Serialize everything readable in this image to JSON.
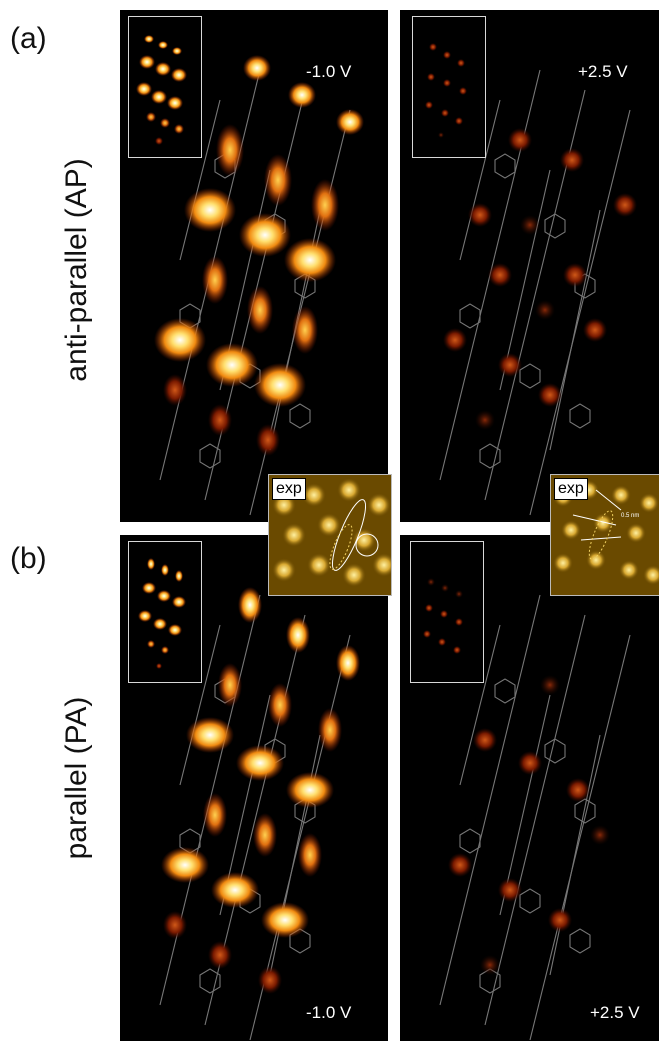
{
  "labels": {
    "a": "(a)",
    "b": "(b)"
  },
  "rows": {
    "ap": "anti-parallel (AP)",
    "pa": "parallel (PA)"
  },
  "voltages": {
    "ap_left": "-1.0 V",
    "ap_right": "+2.5 V",
    "pa_left": "-1.0 V",
    "pa_right": "+2.5 V"
  },
  "exp": {
    "left": "exp",
    "right": "exp",
    "scale": "0.5 nm"
  },
  "colors": {
    "background": "#000000",
    "hot_core": "#ffffff",
    "hot_mid": "#ffb020",
    "hot_edge": "#b03000",
    "molecule": "#9a9a9a",
    "exp_bg": "#6a4a00",
    "exp_spot": "#f0d060"
  }
}
